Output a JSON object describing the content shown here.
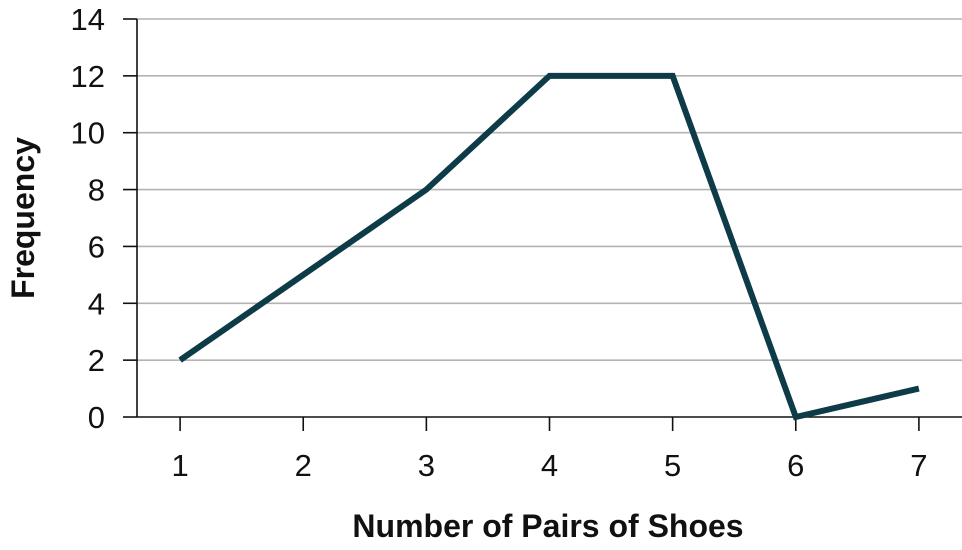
{
  "chart_data": {
    "type": "line",
    "title": "",
    "xlabel": "Number of Pairs of Shoes",
    "ylabel": "Frequency",
    "x": [
      1,
      2,
      3,
      4,
      5,
      6,
      7
    ],
    "series": [
      {
        "values": [
          2,
          5,
          8,
          12,
          12,
          0,
          1
        ]
      }
    ],
    "xticks": [
      "1",
      "2",
      "3",
      "4",
      "5",
      "6",
      "7"
    ],
    "yticks": [
      "0",
      "2",
      "4",
      "6",
      "8",
      "10",
      "12",
      "14"
    ],
    "xlim": [
      0.65,
      7.35
    ],
    "ylim": [
      0,
      14
    ],
    "grid": true,
    "legend": "none",
    "colors": {
      "line": "#0d3b47",
      "grid": "#b3b3b3",
      "axis": "#111111"
    }
  }
}
